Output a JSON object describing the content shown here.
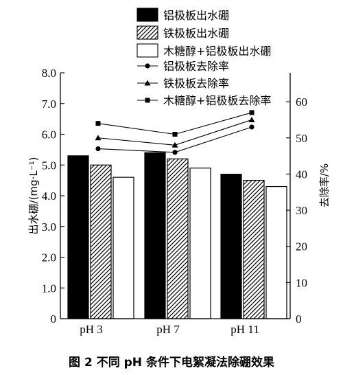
{
  "caption": "图 2   不同 pH 条件下电絮凝法除硼效果",
  "chart_data": {
    "type": "bar",
    "categories": [
      "pH 3",
      "pH 7",
      "pH 11"
    ],
    "bar_series": [
      {
        "name": "铝极板出水硼",
        "fill": "solid",
        "values": [
          5.3,
          5.4,
          4.7
        ]
      },
      {
        "name": "铁极板出水硼",
        "fill": "hatched",
        "values": [
          5.0,
          5.2,
          4.5
        ]
      },
      {
        "name": "木糖醇+铝极板出水硼",
        "fill": "white",
        "values": [
          4.6,
          4.9,
          4.3
        ]
      }
    ],
    "line_series": [
      {
        "name": "铝极板去除率",
        "marker": "circle",
        "values": [
          47,
          46,
          53
        ]
      },
      {
        "name": "铁极板去除率",
        "marker": "triangle",
        "values": [
          50,
          48,
          55
        ]
      },
      {
        "name": "木糖醇+铝极板去除率",
        "marker": "square",
        "values": [
          54,
          51,
          57
        ]
      }
    ],
    "ylabel_left": "出水硼/(mg·L⁻¹)",
    "ylabel_right": "去除率/%",
    "ylim_left": [
      0,
      8
    ],
    "ylim_right": [
      0,
      68
    ],
    "yticks_left": [
      "0",
      "1.0",
      "2.0",
      "3.0",
      "4.0",
      "5.0",
      "6.0",
      "7.0",
      "8.0"
    ],
    "yticks_right": [
      "0",
      "10",
      "20",
      "30",
      "40",
      "50",
      "60"
    ],
    "grid": false,
    "legend_position": "top-right"
  }
}
